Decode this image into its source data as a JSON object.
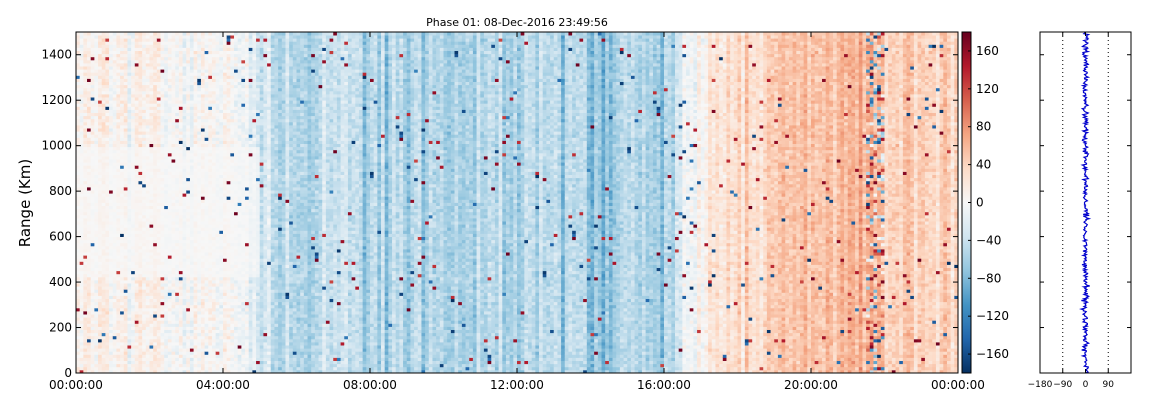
{
  "chart_data": [
    {
      "type": "heatmap",
      "title": "Phase 01: 08-Dec-2016 23:49:56",
      "xlabel": "",
      "ylabel": "Range (Km)",
      "x_tick_labels": [
        "00:00:00",
        "04:00:00",
        "08:00:00",
        "12:00:00",
        "16:00:00",
        "20:00:00",
        "00:00:00"
      ],
      "xlim_hours": [
        0,
        24
      ],
      "ylim": [
        0,
        1500
      ],
      "y_ticks": [
        0,
        200,
        400,
        600,
        800,
        1000,
        1200,
        1400
      ],
      "grid": false,
      "colormap": "RdBu_r",
      "colorbar": {
        "range": [
          -180,
          180
        ],
        "ticks": [
          -160,
          -120,
          -80,
          -40,
          0,
          40,
          80,
          120,
          160
        ]
      },
      "column_mean_phase_by_hour": [
        {
          "hour": 0,
          "value": 8
        },
        {
          "hour": 2,
          "value": 5
        },
        {
          "hour": 4,
          "value": 6
        },
        {
          "hour": 5.3,
          "value": -30
        },
        {
          "hour": 6,
          "value": -45
        },
        {
          "hour": 8,
          "value": -40
        },
        {
          "hour": 10,
          "value": -55
        },
        {
          "hour": 11.5,
          "value": -45
        },
        {
          "hour": 12.5,
          "value": -35
        },
        {
          "hour": 14,
          "value": -65
        },
        {
          "hour": 16,
          "value": -55
        },
        {
          "hour": 16.5,
          "value": -20
        },
        {
          "hour": 17.5,
          "value": 30
        },
        {
          "hour": 19,
          "value": 40
        },
        {
          "hour": 20,
          "value": 55
        },
        {
          "hour": 21.5,
          "value": 60
        },
        {
          "hour": 22.5,
          "value": 45
        },
        {
          "hour": 24,
          "value": 40
        }
      ]
    },
    {
      "type": "line",
      "title": "",
      "xlabel": "",
      "ylabel": "",
      "xlim": [
        -180,
        180
      ],
      "ylim": [
        0,
        1500
      ],
      "x_ticks": [
        -180,
        -90,
        0,
        90
      ],
      "y_ticks": [
        0,
        200,
        400,
        600,
        800,
        1000,
        1200,
        1400
      ],
      "dotted_reference_lines": [
        -90,
        90
      ],
      "series_color": "#0000cc",
      "series_center": 0,
      "series_spread": 8
    }
  ],
  "colors": {
    "line": "#0000cc",
    "frame": "#000000",
    "background": "#ffffff"
  }
}
